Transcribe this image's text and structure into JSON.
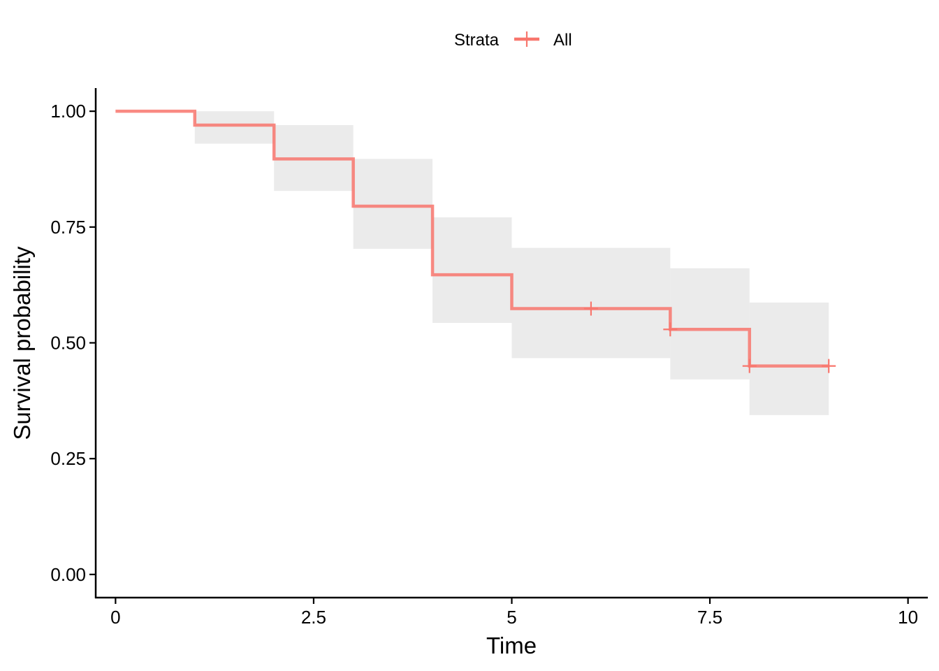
{
  "chart_data": {
    "type": "line",
    "subtype": "kaplan-meier-step",
    "xlabel": "Time",
    "ylabel": "Survival probability",
    "xlim": [
      -0.25,
      10.25
    ],
    "ylim": [
      -0.05,
      1.05
    ],
    "x_ticks": [
      0,
      2.5,
      5,
      7.5,
      10
    ],
    "x_tick_labels": [
      "0",
      "2.5",
      "5",
      "7.5",
      "10"
    ],
    "y_ticks": [
      0,
      0.25,
      0.5,
      0.75,
      1.0
    ],
    "y_tick_labels": [
      "0.00",
      "0.25",
      "0.50",
      "0.75",
      "1.00"
    ],
    "grid": false,
    "legend": {
      "title": "Strata",
      "position": "top",
      "entries": [
        "All"
      ]
    },
    "series": [
      {
        "name": "All",
        "color": "#F8766D",
        "steps": [
          {
            "x": 0,
            "y": 1.0,
            "lower": 1.0,
            "upper": 1.0
          },
          {
            "x": 1,
            "y": 0.97,
            "lower": 0.93,
            "upper": 1.0
          },
          {
            "x": 2,
            "y": 0.897,
            "lower": 0.828,
            "upper": 0.97
          },
          {
            "x": 3,
            "y": 0.795,
            "lower": 0.703,
            "upper": 0.897
          },
          {
            "x": 4,
            "y": 0.647,
            "lower": 0.543,
            "upper": 0.771
          },
          {
            "x": 5,
            "y": 0.574,
            "lower": 0.467,
            "upper": 0.705
          },
          {
            "x": 7,
            "y": 0.529,
            "lower": 0.421,
            "upper": 0.661
          },
          {
            "x": 8,
            "y": 0.45,
            "lower": 0.344,
            "upper": 0.587
          }
        ],
        "end_x": 9,
        "censored": [
          {
            "x": 6,
            "y": 0.574
          },
          {
            "x": 7,
            "y": 0.529
          },
          {
            "x": 8,
            "y": 0.45
          },
          {
            "x": 9,
            "y": 0.45
          }
        ]
      }
    ],
    "ci_color": "#EBEBEB"
  }
}
